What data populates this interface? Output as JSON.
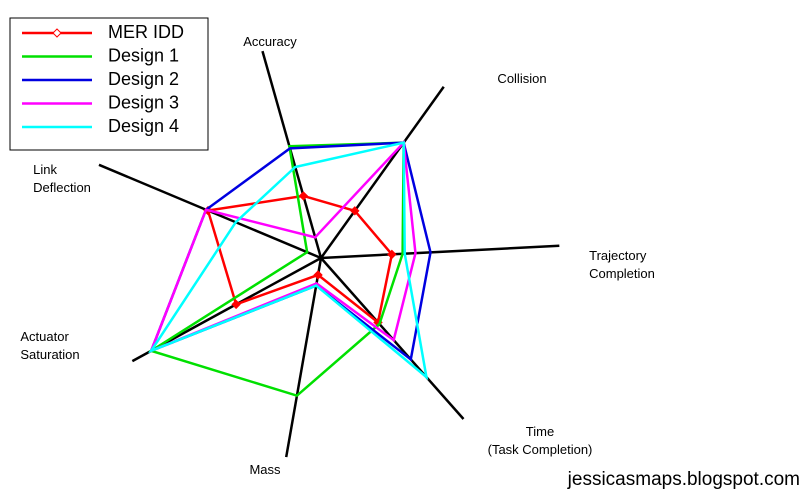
{
  "chart_data": {
    "type": "radar",
    "categories": [
      "Accuracy",
      "Collision",
      "Trajectory\nCompletion",
      "Time\n(Task Completion)",
      "Mass",
      "Actuator\nSaturation",
      "Link\nDeflection"
    ],
    "rlim": [
      0,
      1
    ],
    "series": [
      {
        "name": "MER IDD",
        "color": "#ff0000",
        "marker": "diamond",
        "values": [
          0.3,
          0.27,
          0.33,
          0.4,
          0.08,
          0.45,
          0.57
        ]
      },
      {
        "name": "Design 1",
        "color": "#00e000",
        "values": [
          0.54,
          0.66,
          0.38,
          0.41,
          0.65,
          0.9,
          0.07
        ]
      },
      {
        "name": "Design 2",
        "color": "#0000e0",
        "values": [
          0.53,
          0.66,
          0.51,
          0.63,
          0.13,
          0.9,
          0.58
        ]
      },
      {
        "name": "Design 3",
        "color": "#ff00ff",
        "values": [
          0.1,
          0.66,
          0.44,
          0.51,
          0.12,
          0.9,
          0.58
        ]
      },
      {
        "name": "Design 4",
        "color": "#00ffff",
        "values": [
          0.44,
          0.66,
          0.39,
          0.74,
          0.13,
          0.9,
          0.43
        ]
      }
    ],
    "credit": "jessicasmaps.blogspot.com"
  }
}
